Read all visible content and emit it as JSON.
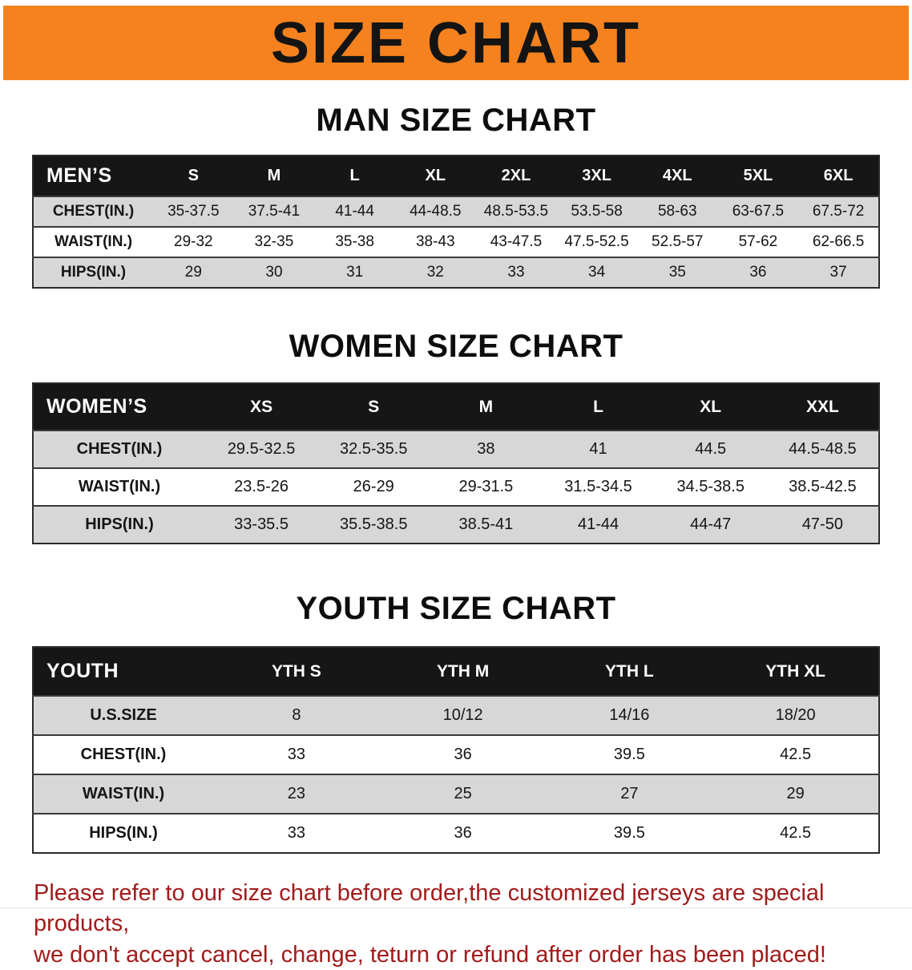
{
  "banner": {
    "title": "SIZE CHART",
    "bg_color": "#F6821F",
    "text_color": "#141414"
  },
  "colors": {
    "table_header_bg": "#161616",
    "table_header_text": "#FFFFFF",
    "row_stripe": "#D7D7D7",
    "disclaimer_text": "#A11B1B"
  },
  "sections": [
    {
      "heading": "MAN SIZE CHART",
      "table": {
        "header": [
          "MEN’S",
          "S",
          "M",
          "L",
          "XL",
          "2XL",
          "3XL",
          "4XL",
          "5XL",
          "6XL"
        ],
        "rows": [
          [
            "CHEST(IN.)",
            "35-37.5",
            "37.5-41",
            "41-44",
            "44-48.5",
            "48.5-53.5",
            "53.5-58",
            "58-63",
            "63-67.5",
            "67.5-72"
          ],
          [
            "WAIST(IN.)",
            "29-32",
            "32-35",
            "35-38",
            "38-43",
            "43-47.5",
            "47.5-52.5",
            "52.5-57",
            "57-62",
            "62-66.5"
          ],
          [
            "HIPS(IN.)",
            "29",
            "30",
            "31",
            "32",
            "33",
            "34",
            "35",
            "36",
            "37"
          ]
        ]
      }
    },
    {
      "heading": "WOMEN SIZE CHART",
      "table": {
        "header": [
          "WOMEN’S",
          "XS",
          "S",
          "M",
          "L",
          "XL",
          "XXL"
        ],
        "rows": [
          [
            "CHEST(IN.)",
            "29.5-32.5",
            "32.5-35.5",
            "38",
            "41",
            "44.5",
            "44.5-48.5"
          ],
          [
            "WAIST(IN.)",
            "23.5-26",
            "26-29",
            "29-31.5",
            "31.5-34.5",
            "34.5-38.5",
            "38.5-42.5"
          ],
          [
            "HIPS(IN.)",
            "33-35.5",
            "35.5-38.5",
            "38.5-41",
            "41-44",
            "44-47",
            "47-50"
          ]
        ]
      }
    },
    {
      "heading": "YOUTH SIZE CHART",
      "table": {
        "header": [
          "YOUTH",
          "YTH S",
          "YTH M",
          "YTH L",
          "YTH XL"
        ],
        "rows": [
          [
            "U.S.SIZE",
            "8",
            "10/12",
            "14/16",
            "18/20"
          ],
          [
            "CHEST(IN.)",
            "33",
            "36",
            "39.5",
            "42.5"
          ],
          [
            "WAIST(IN.)",
            "23",
            "25",
            "27",
            "29"
          ],
          [
            "HIPS(IN.)",
            "33",
            "36",
            "39.5",
            "42.5"
          ]
        ]
      }
    }
  ],
  "disclaimer": {
    "line1": "Please refer to our size chart before order,the customized jerseys are special products,",
    "line2": "we don't accept cancel, change, teturn or refund after order has been placed!"
  }
}
